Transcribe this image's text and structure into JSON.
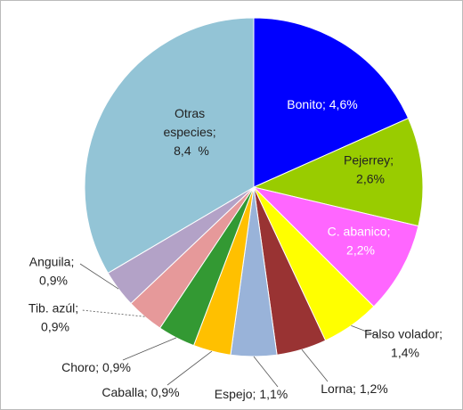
{
  "chart_data": {
    "type": "pie",
    "labels": [
      "Bonito; 4,6%",
      "Pejerrey;\n2,6%",
      "C. abanico;\n2,2%",
      "Falso volador;\n1,4%",
      "Lorna; 1,2%",
      "Espejo; 1,1%",
      "Caballa; 0,9%",
      "Choro; 0,9%",
      "Tib. azúl;\n0,9%",
      "Anguila;\n0,9%",
      "Otras\nespecies;\n8,4  %"
    ],
    "values": [
      4.6,
      2.6,
      2.2,
      1.4,
      1.2,
      1.1,
      0.9,
      0.9,
      0.9,
      0.9,
      8.4
    ],
    "colors": [
      "#0000ff",
      "#99cc00",
      "#ff66ff",
      "#ffff00",
      "#993333",
      "#99b3d9",
      "#ffc000",
      "#339933",
      "#e6999a",
      "#b3a2c7",
      "#93c4d6"
    ]
  }
}
